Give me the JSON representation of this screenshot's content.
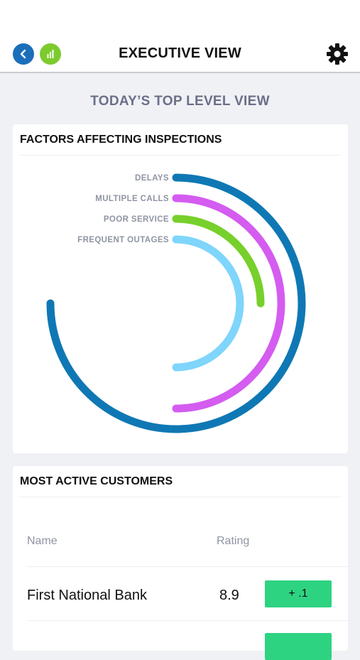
{
  "header": {
    "title": "EXECUTIVE VIEW",
    "back_icon": "chevron-left-icon",
    "chart_icon": "bar-chart-icon",
    "settings_icon": "gear-icon"
  },
  "subtitle": "TODAY’S TOP LEVEL VIEW",
  "factors_card": {
    "title": "FACTORS AFFECTING INSPECTIONS"
  },
  "chart_data": {
    "type": "radial-bar",
    "title": "FACTORS AFFECTING INSPECTIONS",
    "max": 100,
    "series": [
      {
        "name": "DELAYS",
        "value": 75,
        "color": "#0f78b4"
      },
      {
        "name": "MULTIPLE CALLS",
        "value": 50,
        "color": "#d45cf0"
      },
      {
        "name": "POOR SERVICE",
        "value": 25,
        "color": "#77d02b"
      },
      {
        "name": "FREQUENT OUTAGES",
        "value": 50,
        "color": "#7fd5fb"
      }
    ]
  },
  "customers_card": {
    "title": "MOST ACTIVE CUSTOMERS",
    "columns": {
      "name": "Name",
      "rating": "Rating"
    },
    "rows": [
      {
        "name": "First National Bank",
        "rating": "8.9",
        "change": "+ .1"
      }
    ]
  },
  "colors": {
    "back_button": "#1b6fba",
    "chart_button": "#7ccb2e",
    "badge_positive": "#2ed381"
  }
}
